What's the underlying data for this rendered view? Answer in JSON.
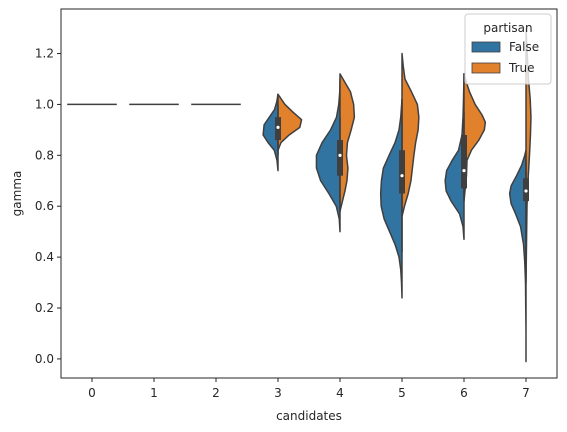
{
  "chart_data": {
    "type": "violin",
    "split": true,
    "xlabel": "candidates",
    "ylabel": "gamma",
    "ylim": [
      -0.075,
      1.375
    ],
    "yticks": [
      0.0,
      0.2,
      0.4,
      0.6,
      0.8,
      1.0,
      1.2
    ],
    "ytick_labels": [
      "0.0",
      "0.2",
      "0.4",
      "0.6",
      "0.8",
      "1.0",
      "1.2"
    ],
    "categories": [
      "0",
      "1",
      "2",
      "3",
      "4",
      "5",
      "6",
      "7"
    ],
    "grid": false,
    "legend": {
      "title": "partisan",
      "placement": "top-right",
      "entries": [
        {
          "label": "False",
          "color": "#3274a1"
        },
        {
          "label": "True",
          "color": "#e1812c"
        }
      ]
    },
    "series": [
      {
        "name": "False",
        "color": "#3274a1",
        "side": "left",
        "violins": [
          {
            "category": "0",
            "min": 1.0,
            "max": 1.0,
            "profile": []
          },
          {
            "category": "1",
            "min": 1.0,
            "max": 1.0,
            "profile": []
          },
          {
            "category": "2",
            "min": 1.0,
            "max": 1.0,
            "profile": []
          },
          {
            "category": "3",
            "min": 0.74,
            "max": 1.04,
            "profile": [
              [
                0.74,
                0.0
              ],
              [
                0.78,
                0.04
              ],
              [
                0.82,
                0.15
              ],
              [
                0.85,
                0.4
              ],
              [
                0.88,
                0.6
              ],
              [
                0.92,
                0.56
              ],
              [
                0.95,
                0.35
              ],
              [
                0.98,
                0.14
              ],
              [
                1.01,
                0.05
              ],
              [
                1.04,
                0.0
              ]
            ]
          },
          {
            "category": "4",
            "min": 0.5,
            "max": 1.1,
            "profile": [
              [
                0.5,
                0.0
              ],
              [
                0.55,
                0.03
              ],
              [
                0.6,
                0.15
              ],
              [
                0.65,
                0.45
              ],
              [
                0.7,
                0.78
              ],
              [
                0.75,
                0.95
              ],
              [
                0.8,
                0.95
              ],
              [
                0.85,
                0.72
              ],
              [
                0.9,
                0.38
              ],
              [
                0.95,
                0.14
              ],
              [
                1.0,
                0.05
              ],
              [
                1.05,
                0.01
              ],
              [
                1.1,
                0.0
              ]
            ]
          },
          {
            "category": "5",
            "min": 0.24,
            "max": 1.02,
            "profile": [
              [
                0.24,
                0.0
              ],
              [
                0.3,
                0.02
              ],
              [
                0.35,
                0.05
              ],
              [
                0.4,
                0.12
              ],
              [
                0.45,
                0.28
              ],
              [
                0.5,
                0.5
              ],
              [
                0.55,
                0.72
              ],
              [
                0.6,
                0.84
              ],
              [
                0.65,
                0.86
              ],
              [
                0.7,
                0.83
              ],
              [
                0.75,
                0.75
              ],
              [
                0.8,
                0.52
              ],
              [
                0.85,
                0.28
              ],
              [
                0.9,
                0.12
              ],
              [
                0.95,
                0.05
              ],
              [
                1.02,
                0.0
              ]
            ]
          },
          {
            "category": "6",
            "min": 0.47,
            "max": 1.12,
            "profile": [
              [
                0.47,
                0.0
              ],
              [
                0.52,
                0.04
              ],
              [
                0.57,
                0.18
              ],
              [
                0.62,
                0.52
              ],
              [
                0.66,
                0.72
              ],
              [
                0.7,
                0.76
              ],
              [
                0.74,
                0.7
              ],
              [
                0.78,
                0.48
              ],
              [
                0.82,
                0.22
              ],
              [
                0.88,
                0.08
              ],
              [
                0.95,
                0.04
              ],
              [
                1.02,
                0.02
              ],
              [
                1.12,
                0.0
              ]
            ]
          },
          {
            "category": "7",
            "min": -0.01,
            "max": 0.82,
            "profile": [
              [
                -0.01,
                0.0
              ],
              [
                0.1,
                0.0
              ],
              [
                0.2,
                0.01
              ],
              [
                0.3,
                0.02
              ],
              [
                0.38,
                0.05
              ],
              [
                0.45,
                0.1
              ],
              [
                0.52,
                0.22
              ],
              [
                0.57,
                0.42
              ],
              [
                0.61,
                0.6
              ],
              [
                0.65,
                0.66
              ],
              [
                0.68,
                0.6
              ],
              [
                0.72,
                0.38
              ],
              [
                0.76,
                0.18
              ],
              [
                0.8,
                0.05
              ],
              [
                0.82,
                0.0
              ]
            ]
          }
        ]
      },
      {
        "name": "True",
        "color": "#e1812c",
        "side": "right",
        "violins": [
          {
            "category": "0",
            "min": 1.0,
            "max": 1.0,
            "profile": []
          },
          {
            "category": "1",
            "min": 1.0,
            "max": 1.0,
            "profile": []
          },
          {
            "category": "2",
            "min": 1.0,
            "max": 1.0,
            "profile": []
          },
          {
            "category": "3",
            "min": 0.82,
            "max": 1.04,
            "profile": [
              [
                0.82,
                0.0
              ],
              [
                0.85,
                0.12
              ],
              [
                0.88,
                0.45
              ],
              [
                0.91,
                0.88
              ],
              [
                0.94,
                0.95
              ],
              [
                0.97,
                0.6
              ],
              [
                1.0,
                0.28
              ],
              [
                1.04,
                0.0
              ]
            ]
          },
          {
            "category": "4",
            "min": 0.58,
            "max": 1.12,
            "profile": [
              [
                0.58,
                0.0
              ],
              [
                0.62,
                0.1
              ],
              [
                0.66,
                0.2
              ],
              [
                0.7,
                0.28
              ],
              [
                0.75,
                0.32
              ],
              [
                0.8,
                0.26
              ],
              [
                0.85,
                0.3
              ],
              [
                0.9,
                0.45
              ],
              [
                0.95,
                0.58
              ],
              [
                1.0,
                0.55
              ],
              [
                1.05,
                0.42
              ],
              [
                1.1,
                0.12
              ],
              [
                1.12,
                0.0
              ]
            ]
          },
          {
            "category": "5",
            "min": 0.56,
            "max": 1.2,
            "profile": [
              [
                0.56,
                0.0
              ],
              [
                0.6,
                0.1
              ],
              [
                0.65,
                0.25
              ],
              [
                0.7,
                0.36
              ],
              [
                0.75,
                0.42
              ],
              [
                0.8,
                0.48
              ],
              [
                0.85,
                0.55
              ],
              [
                0.9,
                0.65
              ],
              [
                0.95,
                0.68
              ],
              [
                1.0,
                0.62
              ],
              [
                1.05,
                0.38
              ],
              [
                1.1,
                0.12
              ],
              [
                1.15,
                0.05
              ],
              [
                1.2,
                0.0
              ]
            ]
          },
          {
            "category": "6",
            "min": 0.62,
            "max": 1.12,
            "profile": [
              [
                0.62,
                0.0
              ],
              [
                0.66,
                0.04
              ],
              [
                0.72,
                0.1
              ],
              [
                0.78,
                0.12
              ],
              [
                0.82,
                0.3
              ],
              [
                0.86,
                0.6
              ],
              [
                0.9,
                0.82
              ],
              [
                0.93,
                0.86
              ],
              [
                0.96,
                0.72
              ],
              [
                1.0,
                0.45
              ],
              [
                1.05,
                0.22
              ],
              [
                1.08,
                0.12
              ],
              [
                1.12,
                0.0
              ]
            ]
          },
          {
            "category": "7",
            "min": 0.3,
            "max": 1.3,
            "profile": [
              [
                0.3,
                0.0
              ],
              [
                0.45,
                0.02
              ],
              [
                0.6,
                0.04
              ],
              [
                0.7,
                0.08
              ],
              [
                0.8,
                0.14
              ],
              [
                0.88,
                0.18
              ],
              [
                0.95,
                0.2
              ],
              [
                1.02,
                0.17
              ],
              [
                1.1,
                0.1
              ],
              [
                1.2,
                0.05
              ],
              [
                1.3,
                0.0
              ]
            ]
          }
        ]
      }
    ],
    "inner_boxes": [
      {
        "category": "0",
        "side": "left",
        "q1": 1.0,
        "median": 1.0,
        "q3": 1.0,
        "whisker": [
          1.0,
          1.0
        ]
      },
      {
        "category": "1",
        "side": "left",
        "q1": 1.0,
        "median": 1.0,
        "q3": 1.0,
        "whisker": [
          1.0,
          1.0
        ]
      },
      {
        "category": "2",
        "side": "left",
        "q1": 1.0,
        "median": 1.0,
        "q3": 1.0,
        "whisker": [
          1.0,
          1.0
        ]
      },
      {
        "category": "3",
        "side": "left",
        "q1": 0.86,
        "median": 0.91,
        "q3": 0.95,
        "whisker": [
          0.8,
          1.0
        ]
      },
      {
        "category": "4",
        "side": "left",
        "q1": 0.72,
        "median": 0.8,
        "q3": 0.86,
        "whisker": [
          0.58,
          0.95
        ]
      },
      {
        "category": "5",
        "side": "left",
        "q1": 0.65,
        "median": 0.72,
        "q3": 0.82,
        "whisker": [
          0.42,
          1.02
        ]
      },
      {
        "category": "6",
        "side": "left",
        "q1": 0.67,
        "median": 0.74,
        "q3": 0.88,
        "whisker": [
          0.63,
          0.97
        ]
      },
      {
        "category": "7",
        "side": "left",
        "q1": 0.62,
        "median": 0.66,
        "q3": 0.71,
        "whisker": [
          0.34,
          0.78
        ]
      }
    ]
  }
}
